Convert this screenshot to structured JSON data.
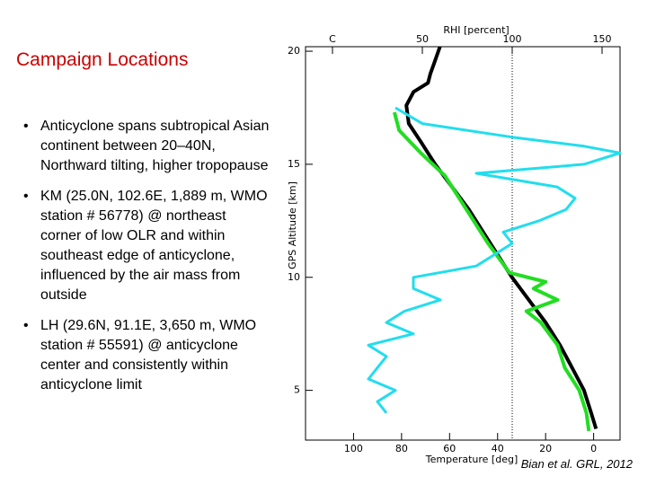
{
  "slide": {
    "title": "Campaign Locations",
    "bullets": [
      "Anticyclone spans subtropical Asian continent between 20–40N, Northward tilting, higher tropopause",
      "KM (25.0N, 102.6E, 1,889 m, WMO station # 56778) @ northeast corner of low OLR and within southeast edge of anticyclone, influenced by the air mass from outside",
      "LH (29.6N, 91.1E, 3,650 m, WMO station # 55591) @ anticyclone center and consistently within anticyclone limit"
    ],
    "citation": "Bian et al. GRL, 2012"
  },
  "chart_data": {
    "type": "line",
    "ylabel": "GPS Altitude [km]",
    "xlabel": "Temperature [deg]",
    "x2label": "RHI [percent]",
    "ylim": [
      2.8,
      20.2
    ],
    "yticks": [
      5,
      10,
      15,
      20
    ],
    "xlim": [
      -120,
      11
    ],
    "xticks": [
      {
        "value": -100,
        "label": "100"
      },
      {
        "value": -80,
        "label": "80"
      },
      {
        "value": -60,
        "label": "60"
      },
      {
        "value": -40,
        "label": "40"
      },
      {
        "value": -20,
        "label": "20"
      },
      0
    ],
    "x2lim": [
      -15,
      160
    ],
    "x2ticks": [
      {
        "value": 0,
        "label": "C"
      },
      50,
      100,
      150
    ],
    "series": [
      {
        "color": "#000000",
        "axis": "x",
        "altitude": [
          20.2,
          19.6,
          19,
          18.6,
          18.2,
          17.6,
          16.8,
          16,
          15,
          14,
          13,
          12,
          11,
          10,
          9,
          8,
          7,
          6,
          5,
          4,
          3.3
        ],
        "values": [
          -64,
          -66,
          -68,
          -69,
          -75,
          -78,
          -77,
          -72,
          -66,
          -59,
          -52,
          -46,
          -40,
          -34,
          -27,
          -20,
          -14,
          -9,
          -4,
          -1,
          1
        ]
      },
      {
        "color": "#22dd22",
        "axis": "x",
        "altitude": [
          17.3,
          16.5,
          15.5,
          14.5,
          13,
          11.5,
          10.2,
          9.8,
          9.5,
          9,
          8.5,
          8,
          7,
          6,
          5,
          4,
          3.2
        ],
        "values": [
          -83,
          -81,
          -72,
          -62,
          -53,
          -44,
          -35,
          -20,
          -25,
          -15,
          -28,
          -22,
          -15,
          -12,
          -6,
          -3,
          -2
        ]
      },
      {
        "color": "#22ddee",
        "axis": "x2",
        "altitude": [
          17.5,
          16.8,
          16.2,
          15.8,
          15.5,
          15,
          14.6,
          14,
          13.5,
          13,
          12.5,
          12,
          11.5,
          11,
          10.5,
          10,
          9.5,
          9,
          8.5,
          8,
          7.5,
          7,
          6.5,
          6,
          5.5,
          5,
          4.5,
          4
        ],
        "values": [
          35,
          50,
          100,
          140,
          160,
          140,
          80,
          125,
          135,
          130,
          115,
          95,
          100,
          90,
          80,
          45,
          45,
          60,
          40,
          30,
          45,
          20,
          30,
          25,
          20,
          35,
          25,
          30
        ]
      }
    ]
  }
}
